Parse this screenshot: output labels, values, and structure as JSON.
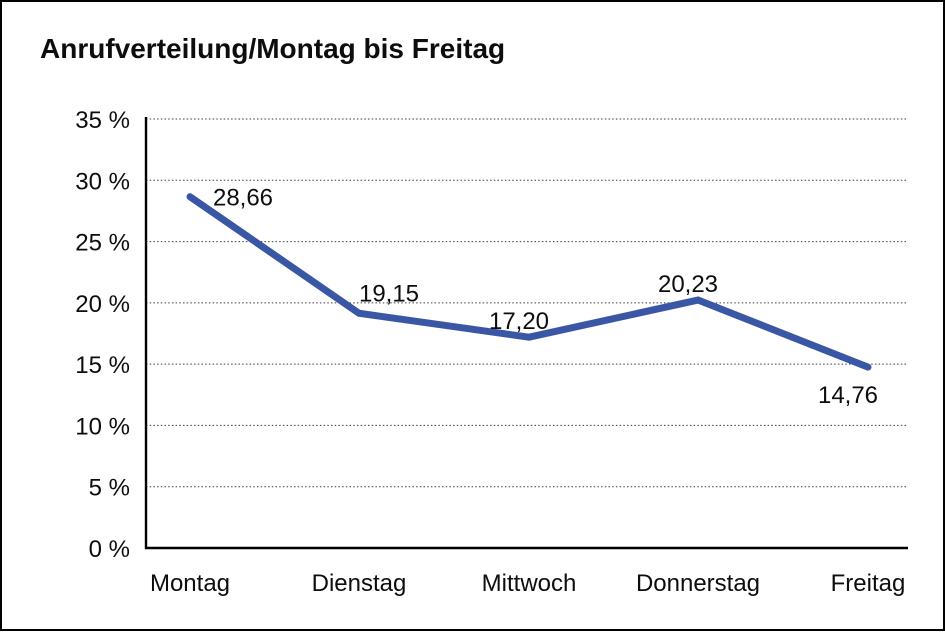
{
  "window": {
    "background_color": "#ffffff",
    "border_color": "#000000"
  },
  "chart_data": {
    "type": "line",
    "title": "Anrufverteilung/Montag bis Freitag",
    "categories": [
      "Montag",
      "Dienstag",
      "Mittwoch",
      "Donnerstag",
      "Freitag"
    ],
    "values": [
      28.66,
      19.15,
      17.2,
      20.23,
      14.76
    ],
    "point_labels": [
      "28,66",
      "19,15",
      "17,20",
      "20,23",
      "14,76"
    ],
    "xlabel": "",
    "ylabel": "",
    "ylim": [
      0,
      35
    ],
    "ytick_step": 5,
    "ytick_labels": [
      "0 %",
      "5 %",
      "10 %",
      "15 %",
      "20 %",
      "25 %",
      "30 %",
      "35 %"
    ],
    "grid": "horizontal-dotted",
    "legend": "none",
    "line_color": "#3A57A6",
    "grid_color": "#3c3c3c",
    "axis_color": "#000000",
    "text_color": "#0d0d0d"
  }
}
